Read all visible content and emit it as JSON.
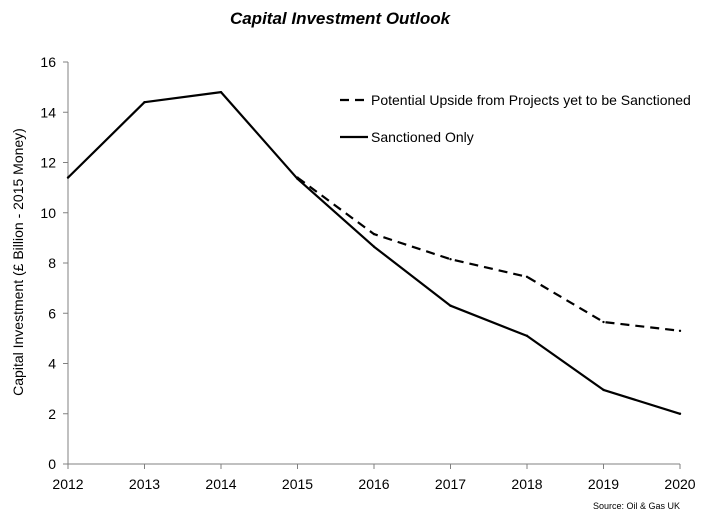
{
  "chart_data": {
    "type": "line",
    "title": "Capital Investment Outlook",
    "xlabel": "",
    "ylabel": "Capital Investment (£ Billion - 2015 Money)",
    "x": [
      2012,
      2013,
      2014,
      2015,
      2016,
      2017,
      2018,
      2019,
      2020
    ],
    "xlim": [
      2012,
      2020
    ],
    "ylim": [
      0,
      16
    ],
    "yticks": [
      0,
      2,
      4,
      6,
      8,
      10,
      12,
      14,
      16
    ],
    "grid": false,
    "legend_position": "top-right",
    "series": [
      {
        "name": "Potential Upside from Projects yet to be Sanctioned",
        "style": "dashed",
        "color": "#000000",
        "x": [
          2015,
          2016,
          2017,
          2018,
          2019,
          2020
        ],
        "values": [
          11.4,
          9.15,
          8.15,
          7.45,
          5.65,
          5.3
        ]
      },
      {
        "name": "Sanctioned Only",
        "style": "solid",
        "color": "#000000",
        "x": [
          2012,
          2013,
          2014,
          2015,
          2016,
          2017,
          2018,
          2019,
          2020
        ],
        "values": [
          11.4,
          14.4,
          14.8,
          11.35,
          8.65,
          6.3,
          5.1,
          2.95,
          2.0
        ]
      }
    ],
    "source": "Source: Oil & Gas UK"
  }
}
